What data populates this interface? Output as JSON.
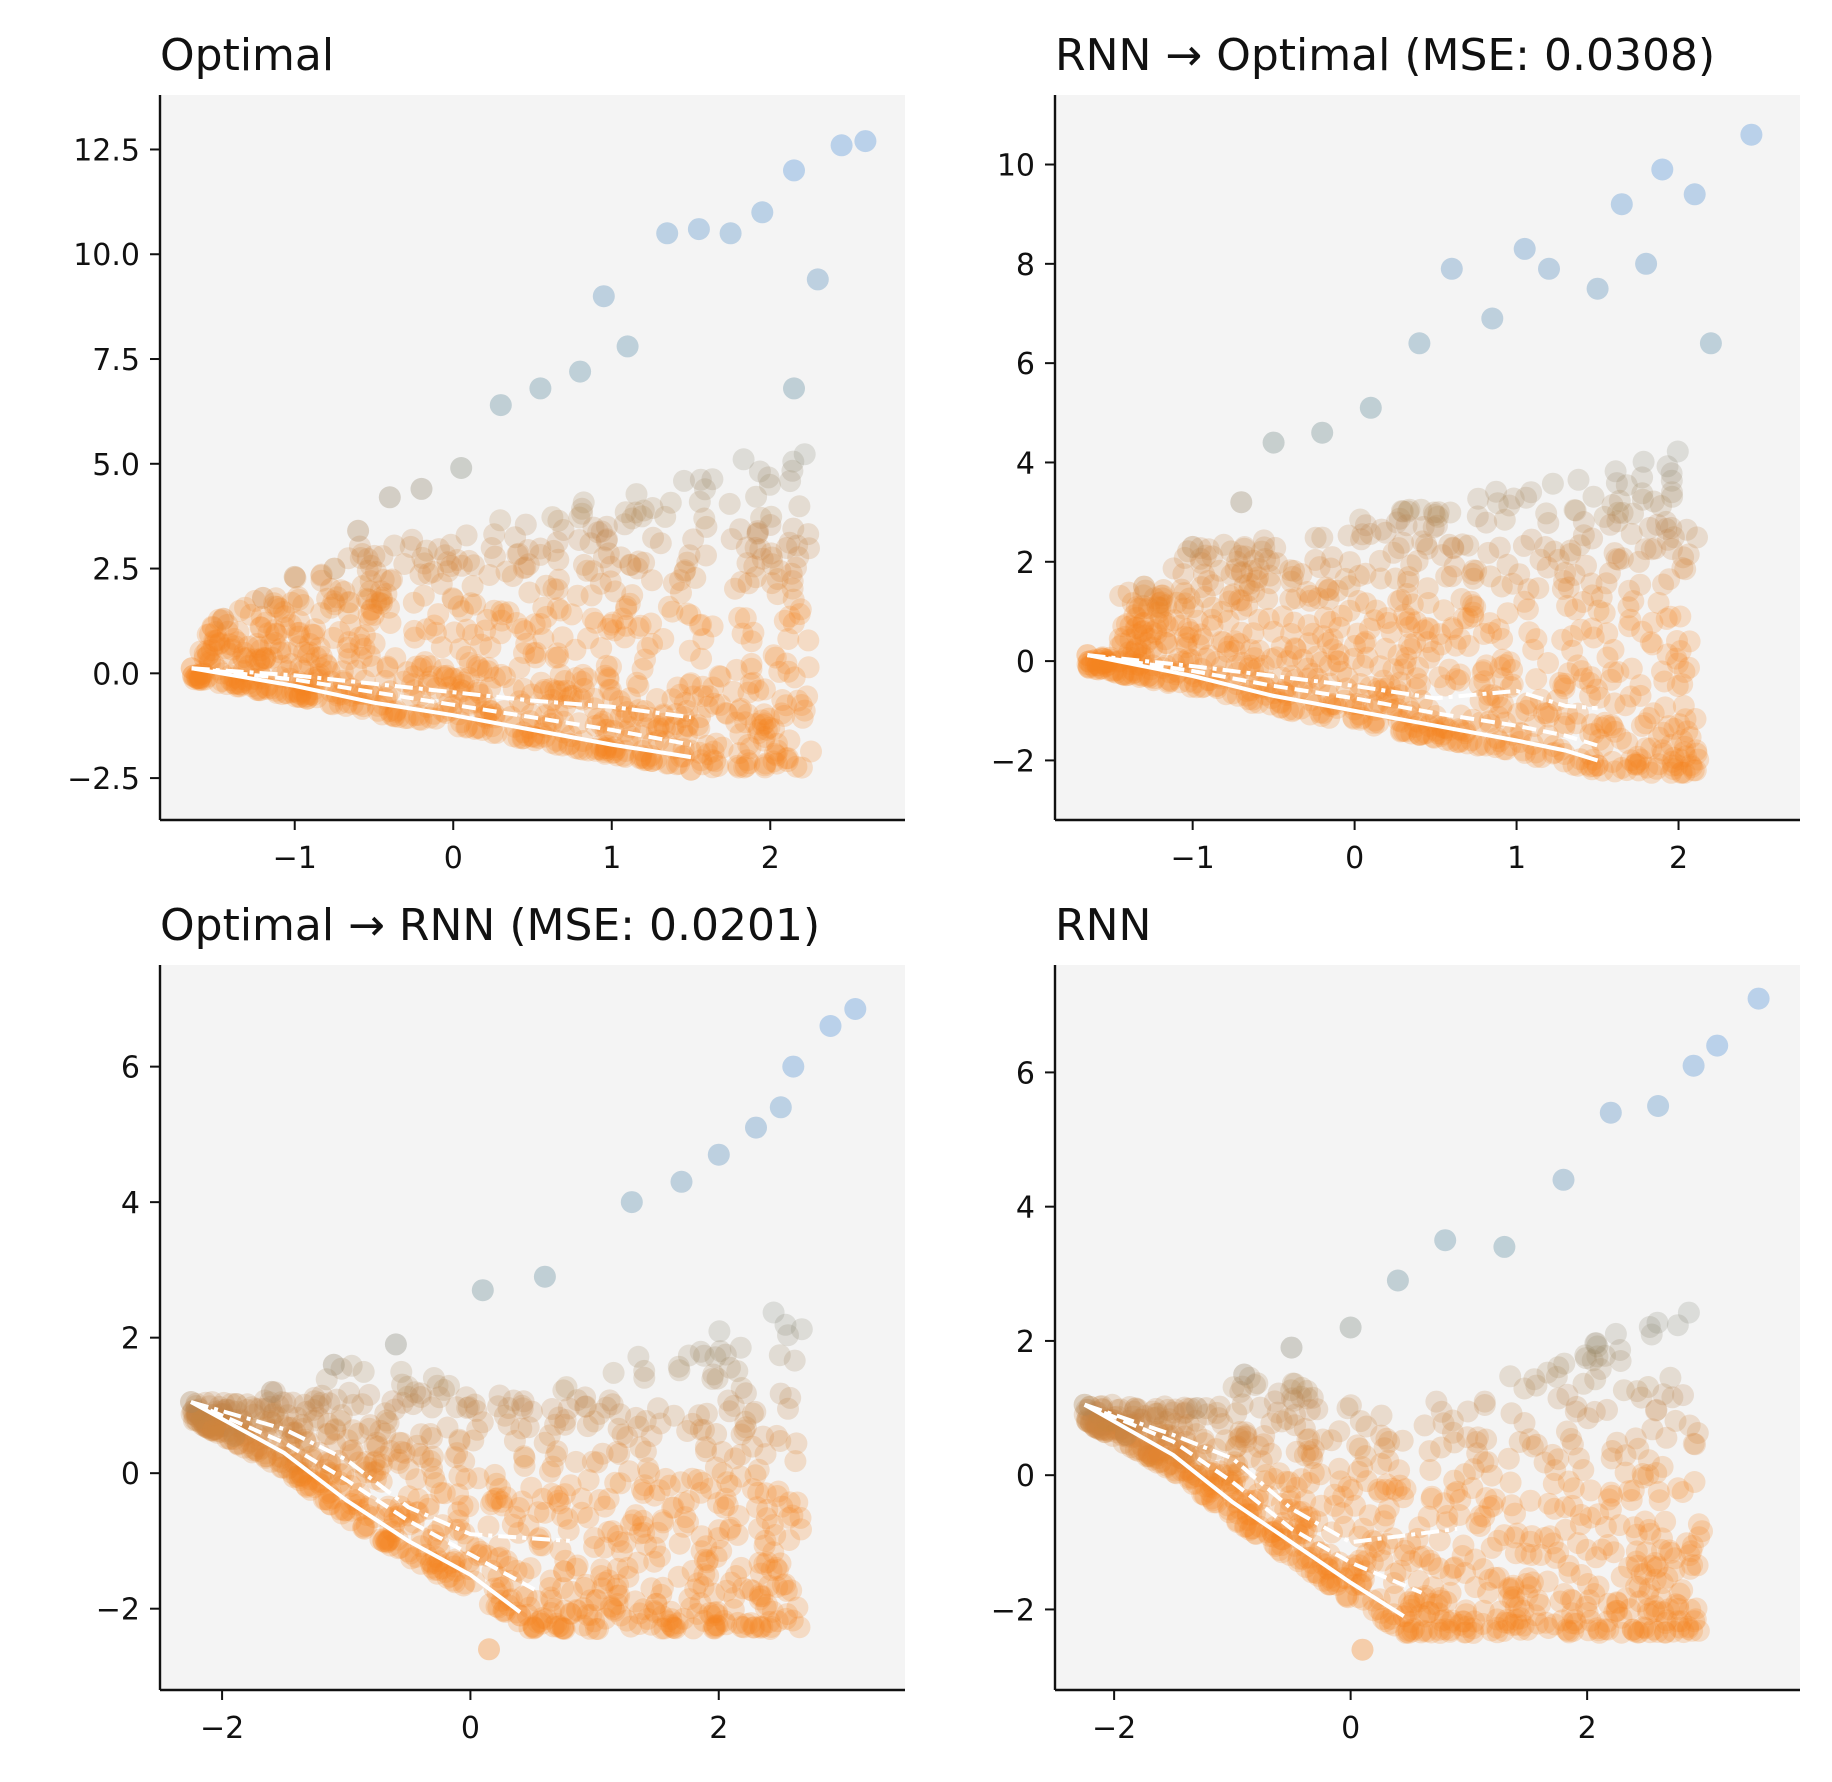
{
  "colors": {
    "low": "#f5841f",
    "mid": "#5f8a99",
    "high": "#4d8fd8",
    "mean_lines": "#ffffff",
    "plot_bg": "#f4f4f4"
  },
  "chart_data": [
    {
      "type": "scatter",
      "title": "Optimal",
      "xlim": [
        -1.85,
        2.85
      ],
      "ylim": [
        -3.5,
        13.8
      ],
      "xticks": [
        -1,
        0,
        1,
        2
      ],
      "xtick_labels": [
        "−1",
        "0",
        "1",
        "2"
      ],
      "yticks": [
        -2.5,
        0,
        2.5,
        5,
        7.5,
        10,
        12.5
      ],
      "ytick_labels": [
        "−2.5",
        "0.0",
        "2.5",
        "5.0",
        "7.5",
        "10.0",
        "12.5"
      ],
      "grid": false,
      "sample_points": [
        [
          -1.65,
          0.12
        ],
        [
          -1.45,
          1.3
        ],
        [
          -1.2,
          1.8
        ],
        [
          -1.0,
          2.3
        ],
        [
          -0.75,
          2.5
        ],
        [
          -0.6,
          3.4
        ],
        [
          -0.4,
          4.2
        ],
        [
          -0.2,
          4.4
        ],
        [
          0.05,
          4.9
        ],
        [
          0.3,
          6.4
        ],
        [
          0.55,
          6.8
        ],
        [
          0.8,
          7.2
        ],
        [
          0.95,
          9.0
        ],
        [
          1.1,
          7.8
        ],
        [
          1.35,
          10.5
        ],
        [
          1.55,
          10.6
        ],
        [
          1.75,
          10.5
        ],
        [
          1.95,
          11.0
        ],
        [
          2.15,
          12.0
        ],
        [
          2.45,
          12.6
        ],
        [
          2.6,
          12.7
        ],
        [
          2.15,
          6.8
        ],
        [
          2.3,
          9.4
        ],
        [
          1.5,
          -2.3
        ],
        [
          0.5,
          -1.5
        ]
      ],
      "mean_lines": [
        {
          "style": "solid",
          "x": [
            -1.65,
            -1.0,
            -0.5,
            0.0,
            0.5,
            1.0,
            1.5
          ],
          "y": [
            0.12,
            -0.3,
            -0.7,
            -1.0,
            -1.35,
            -1.7,
            -2.0
          ]
        },
        {
          "style": "dashed",
          "x": [
            -1.65,
            -1.0,
            -0.5,
            0.0,
            0.5,
            1.0,
            1.5
          ],
          "y": [
            0.12,
            -0.15,
            -0.45,
            -0.75,
            -1.05,
            -1.35,
            -1.7
          ]
        },
        {
          "style": "dashdot",
          "x": [
            -1.65,
            -1.0,
            -0.5,
            0.0,
            0.5,
            1.0,
            1.5
          ],
          "y": [
            0.12,
            -0.05,
            -0.25,
            -0.45,
            -0.65,
            -0.8,
            -1.05
          ]
        }
      ]
    },
    {
      "type": "scatter",
      "title": "RNN → Optimal (MSE: 0.0308)",
      "xlim": [
        -1.85,
        2.75
      ],
      "ylim": [
        -3.2,
        11.4
      ],
      "xticks": [
        -1,
        0,
        1,
        2
      ],
      "xtick_labels": [
        "−1",
        "0",
        "1",
        "2"
      ],
      "yticks": [
        -2,
        0,
        2,
        4,
        6,
        8,
        10
      ],
      "ytick_labels": [
        "−2",
        "0",
        "2",
        "4",
        "6",
        "8",
        "10"
      ],
      "grid": false,
      "sample_points": [
        [
          -1.65,
          0.12
        ],
        [
          -1.3,
          1.5
        ],
        [
          -1.0,
          2.3
        ],
        [
          -0.7,
          3.2
        ],
        [
          -0.5,
          4.4
        ],
        [
          -0.2,
          4.6
        ],
        [
          0.1,
          5.1
        ],
        [
          0.4,
          6.4
        ],
        [
          0.6,
          7.9
        ],
        [
          0.85,
          6.9
        ],
        [
          1.05,
          8.3
        ],
        [
          1.2,
          7.9
        ],
        [
          1.5,
          7.5
        ],
        [
          1.65,
          9.2
        ],
        [
          1.9,
          9.9
        ],
        [
          2.1,
          9.4
        ],
        [
          2.45,
          10.6
        ],
        [
          2.2,
          6.4
        ],
        [
          1.8,
          8.0
        ],
        [
          1.5,
          -2.1
        ]
      ],
      "mean_lines": [
        {
          "style": "solid",
          "x": [
            -1.65,
            -1.0,
            -0.5,
            0.0,
            0.5,
            1.0,
            1.3,
            1.5
          ],
          "y": [
            0.12,
            -0.3,
            -0.7,
            -1.0,
            -1.3,
            -1.6,
            -1.8,
            -2.0
          ]
        },
        {
          "style": "dashed",
          "x": [
            -1.65,
            -1.0,
            -0.5,
            0.0,
            0.5,
            1.0,
            1.3,
            1.5
          ],
          "y": [
            0.12,
            -0.2,
            -0.5,
            -0.75,
            -1.05,
            -1.3,
            -1.5,
            -1.7
          ]
        },
        {
          "style": "dashdot",
          "x": [
            -1.65,
            -1.0,
            -0.5,
            0.0,
            0.5,
            1.0,
            1.3,
            1.5
          ],
          "y": [
            0.12,
            -0.1,
            -0.3,
            -0.5,
            -0.75,
            -0.6,
            -0.9,
            -0.95
          ]
        }
      ]
    },
    {
      "type": "scatter",
      "title": "Optimal → RNN (MSE: 0.0201)",
      "xlim": [
        -2.5,
        3.5
      ],
      "ylim": [
        -3.2,
        7.5
      ],
      "xticks": [
        -2,
        0,
        2
      ],
      "xtick_labels": [
        "−2",
        "0",
        "2"
      ],
      "yticks": [
        -2,
        0,
        2,
        4,
        6
      ],
      "ytick_labels": [
        "−2",
        "0",
        "2",
        "4",
        "6"
      ],
      "grid": false,
      "sample_points": [
        [
          -2.25,
          1.05
        ],
        [
          -1.9,
          0.55
        ],
        [
          -1.6,
          1.2
        ],
        [
          -1.1,
          1.6
        ],
        [
          -0.6,
          1.9
        ],
        [
          0.1,
          2.7
        ],
        [
          0.6,
          2.9
        ],
        [
          1.3,
          4.0
        ],
        [
          1.7,
          4.3
        ],
        [
          2.0,
          4.7
        ],
        [
          2.3,
          5.1
        ],
        [
          2.6,
          6.0
        ],
        [
          2.9,
          6.6
        ],
        [
          3.1,
          6.85
        ],
        [
          2.5,
          5.4
        ],
        [
          0.15,
          -2.6
        ],
        [
          0.4,
          -2.1
        ]
      ],
      "mean_lines": [
        {
          "style": "solid",
          "x": [
            -2.25,
            -1.5,
            -1.0,
            -0.5,
            0.0,
            0.4
          ],
          "y": [
            1.05,
            0.3,
            -0.4,
            -1.0,
            -1.5,
            -2.05
          ]
        },
        {
          "style": "dashed",
          "x": [
            -2.25,
            -1.5,
            -1.0,
            -0.5,
            0.0,
            0.55
          ],
          "y": [
            1.05,
            0.45,
            -0.1,
            -0.7,
            -1.2,
            -1.75
          ]
        },
        {
          "style": "dashdot",
          "x": [
            -2.25,
            -1.5,
            -1.0,
            -0.5,
            0.0,
            0.8
          ],
          "y": [
            1.05,
            0.65,
            0.2,
            -0.5,
            -0.9,
            -1.0
          ]
        }
      ]
    },
    {
      "type": "scatter",
      "title": "RNN",
      "xlim": [
        -2.5,
        3.8
      ],
      "ylim": [
        -3.2,
        7.6
      ],
      "xticks": [
        -2,
        0,
        2
      ],
      "xtick_labels": [
        "−2",
        "0",
        "2"
      ],
      "yticks": [
        -2,
        0,
        2,
        4,
        6
      ],
      "ytick_labels": [
        "−2",
        "0",
        "2",
        "4",
        "6"
      ],
      "grid": false,
      "sample_points": [
        [
          -2.25,
          1.05
        ],
        [
          -1.9,
          0.6
        ],
        [
          -1.3,
          1.0
        ],
        [
          -0.9,
          1.5
        ],
        [
          -0.5,
          1.9
        ],
        [
          0.0,
          2.2
        ],
        [
          0.4,
          2.9
        ],
        [
          0.8,
          3.5
        ],
        [
          1.3,
          3.4
        ],
        [
          1.8,
          4.4
        ],
        [
          2.2,
          5.4
        ],
        [
          2.6,
          5.5
        ],
        [
          2.9,
          6.1
        ],
        [
          3.1,
          6.4
        ],
        [
          3.45,
          7.1
        ],
        [
          0.1,
          -2.6
        ],
        [
          0.45,
          -2.1
        ]
      ],
      "mean_lines": [
        {
          "style": "solid",
          "x": [
            -2.25,
            -1.5,
            -1.0,
            -0.5,
            0.0,
            0.45
          ],
          "y": [
            1.05,
            0.3,
            -0.4,
            -1.0,
            -1.6,
            -2.1
          ]
        },
        {
          "style": "dashed",
          "x": [
            -2.25,
            -1.5,
            -1.0,
            -0.5,
            0.0,
            0.6
          ],
          "y": [
            1.05,
            0.5,
            -0.1,
            -0.8,
            -1.3,
            -1.75
          ]
        },
        {
          "style": "dashdot",
          "x": [
            -2.25,
            -1.5,
            -1.0,
            -0.5,
            0.0,
            0.9
          ],
          "y": [
            1.05,
            0.6,
            0.25,
            -0.5,
            -1.0,
            -0.8
          ]
        }
      ]
    }
  ]
}
